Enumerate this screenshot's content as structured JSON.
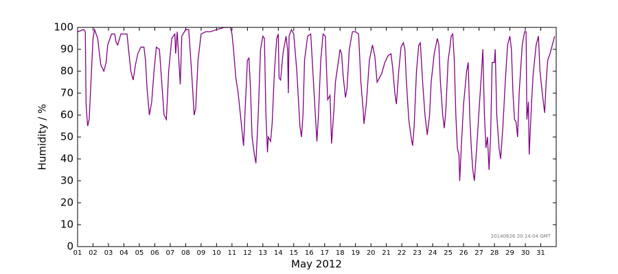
{
  "chart_data": {
    "type": "line",
    "x_label": "May 2012",
    "y_label": "Humidity / %",
    "annotation": "20140626 20:14:04 GMT",
    "color": "#800080",
    "grid": false,
    "xlim": [
      1,
      32
    ],
    "ylim": [
      0,
      100
    ],
    "yticks": [
      0,
      10,
      20,
      30,
      40,
      50,
      60,
      70,
      80,
      90,
      100
    ],
    "xticks": [
      {
        "value": 1,
        "label": "01"
      },
      {
        "value": 2,
        "label": "02"
      },
      {
        "value": 3,
        "label": "03"
      },
      {
        "value": 4,
        "label": "04"
      },
      {
        "value": 5,
        "label": "05"
      },
      {
        "value": 6,
        "label": "06"
      },
      {
        "value": 7,
        "label": "07"
      },
      {
        "value": 8,
        "label": "08"
      },
      {
        "value": 9,
        "label": "09"
      },
      {
        "value": 10,
        "label": "10"
      },
      {
        "value": 11,
        "label": "11"
      },
      {
        "value": 12,
        "label": "12"
      },
      {
        "value": 13,
        "label": "13"
      },
      {
        "value": 14,
        "label": "14"
      },
      {
        "value": 15,
        "label": "15"
      },
      {
        "value": 16,
        "label": "16"
      },
      {
        "value": 17,
        "label": "17"
      },
      {
        "value": 18,
        "label": "18"
      },
      {
        "value": 19,
        "label": "19"
      },
      {
        "value": 20,
        "label": "20"
      },
      {
        "value": 21,
        "label": "21"
      },
      {
        "value": 22,
        "label": "22"
      },
      {
        "value": 23,
        "label": "23"
      },
      {
        "value": 24,
        "label": "24"
      },
      {
        "value": 25,
        "label": "25"
      },
      {
        "value": 26,
        "label": "26"
      },
      {
        "value": 27,
        "label": "27"
      },
      {
        "value": 28,
        "label": "28"
      },
      {
        "value": 29,
        "label": "29"
      },
      {
        "value": 30,
        "label": "30"
      },
      {
        "value": 31,
        "label": "31"
      }
    ],
    "x": [
      1.0,
      1.4,
      1.5,
      1.55,
      1.65,
      1.75,
      1.9,
      2.0,
      2.1,
      2.3,
      2.5,
      2.7,
      2.85,
      2.95,
      3.2,
      3.4,
      3.5,
      3.6,
      3.8,
      4.2,
      4.3,
      4.45,
      4.6,
      4.75,
      4.9,
      5.1,
      5.3,
      5.4,
      5.5,
      5.65,
      5.8,
      5.95,
      6.1,
      6.3,
      6.45,
      6.6,
      6.75,
      6.9,
      7.1,
      7.3,
      7.35,
      7.45,
      7.6,
      7.65,
      7.75,
      8.0,
      8.2,
      8.4,
      8.55,
      8.65,
      8.8,
      9.0,
      9.3,
      9.6,
      10.0,
      10.5,
      10.9,
      11.0,
      11.1,
      11.25,
      11.4,
      11.55,
      11.75,
      11.85,
      12.0,
      12.1,
      12.2,
      12.3,
      12.45,
      12.55,
      12.7,
      12.85,
      13.0,
      13.1,
      13.2,
      13.3,
      13.35,
      13.5,
      13.6,
      13.75,
      13.9,
      14.0,
      14.05,
      14.15,
      14.3,
      14.5,
      14.6,
      14.65,
      14.7,
      14.85,
      15.0,
      15.2,
      15.4,
      15.5,
      15.6,
      15.7,
      15.9,
      16.1,
      16.2,
      16.4,
      16.5,
      16.6,
      16.75,
      16.9,
      17.05,
      17.1,
      17.2,
      17.35,
      17.45,
      17.6,
      17.7,
      17.9,
      18.0,
      18.1,
      18.2,
      18.35,
      18.45,
      18.6,
      18.8,
      19.0,
      19.2,
      19.35,
      19.5,
      19.55,
      19.7,
      19.9,
      20.1,
      20.25,
      20.4,
      20.55,
      20.7,
      20.9,
      21.1,
      21.3,
      21.4,
      21.55,
      21.65,
      21.8,
      21.95,
      22.1,
      22.2,
      22.3,
      22.45,
      22.6,
      22.7,
      22.8,
      22.95,
      23.1,
      23.2,
      23.35,
      23.5,
      23.65,
      23.8,
      23.9,
      24.1,
      24.3,
      24.4,
      24.5,
      24.65,
      24.75,
      24.85,
      25.0,
      25.1,
      25.2,
      25.3,
      25.4,
      25.5,
      25.6,
      25.7,
      25.75,
      25.85,
      26.0,
      26.2,
      26.3,
      26.4,
      26.5,
      26.6,
      26.7,
      26.85,
      27.0,
      27.15,
      27.25,
      27.35,
      27.45,
      27.55,
      27.65,
      27.75,
      27.85,
      28.0,
      28.05,
      28.15,
      28.3,
      28.4,
      28.55,
      28.7,
      28.85,
      29.0,
      29.1,
      29.2,
      29.3,
      29.4,
      29.5,
      29.6,
      29.8,
      29.95,
      30.05,
      30.1,
      30.2,
      30.25,
      30.4,
      30.5,
      30.7,
      30.85,
      30.95,
      31.1,
      31.25,
      31.35,
      31.45,
      31.6,
      31.75,
      31.9
    ],
    "values": [
      98,
      99,
      98,
      65,
      55,
      58,
      80,
      95,
      99,
      95,
      83,
      80,
      84,
      92,
      97,
      97,
      93,
      92,
      97,
      97,
      90,
      80,
      76,
      83,
      88,
      91,
      91,
      85,
      72,
      60,
      66,
      80,
      91,
      90,
      75,
      60,
      58,
      80,
      95,
      97,
      88,
      98,
      80,
      74,
      96,
      99,
      99,
      78,
      60,
      63,
      85,
      97,
      98,
      98,
      99,
      100,
      100,
      97,
      90,
      77,
      70,
      60,
      46,
      62,
      85,
      86,
      72,
      50,
      42,
      38,
      60,
      90,
      96,
      95,
      60,
      43,
      50,
      48,
      56,
      80,
      95,
      97,
      77,
      76,
      88,
      96,
      90,
      70,
      96,
      99,
      97,
      80,
      55,
      50,
      60,
      85,
      96,
      97,
      85,
      60,
      48,
      60,
      85,
      97,
      96,
      85,
      67,
      69,
      47,
      62,
      75,
      85,
      90,
      88,
      78,
      68,
      72,
      90,
      98,
      98,
      97,
      75,
      62,
      56,
      65,
      85,
      92,
      87,
      75,
      77,
      79,
      84,
      87,
      88,
      82,
      70,
      65,
      80,
      91,
      93,
      90,
      75,
      58,
      50,
      46,
      55,
      80,
      92,
      93,
      75,
      60,
      51,
      60,
      75,
      88,
      95,
      92,
      75,
      60,
      54,
      62,
      85,
      90,
      96,
      97,
      85,
      60,
      45,
      42,
      30,
      45,
      65,
      80,
      84,
      60,
      45,
      35,
      30,
      45,
      62,
      78,
      90,
      60,
      45,
      50,
      35,
      50,
      84,
      84,
      90,
      60,
      45,
      40,
      55,
      75,
      92,
      96,
      90,
      70,
      58,
      57,
      50,
      70,
      92,
      98,
      98,
      58,
      66,
      42,
      65,
      78,
      92,
      96,
      80,
      70,
      61,
      75,
      85,
      88,
      92,
      96
    ]
  }
}
